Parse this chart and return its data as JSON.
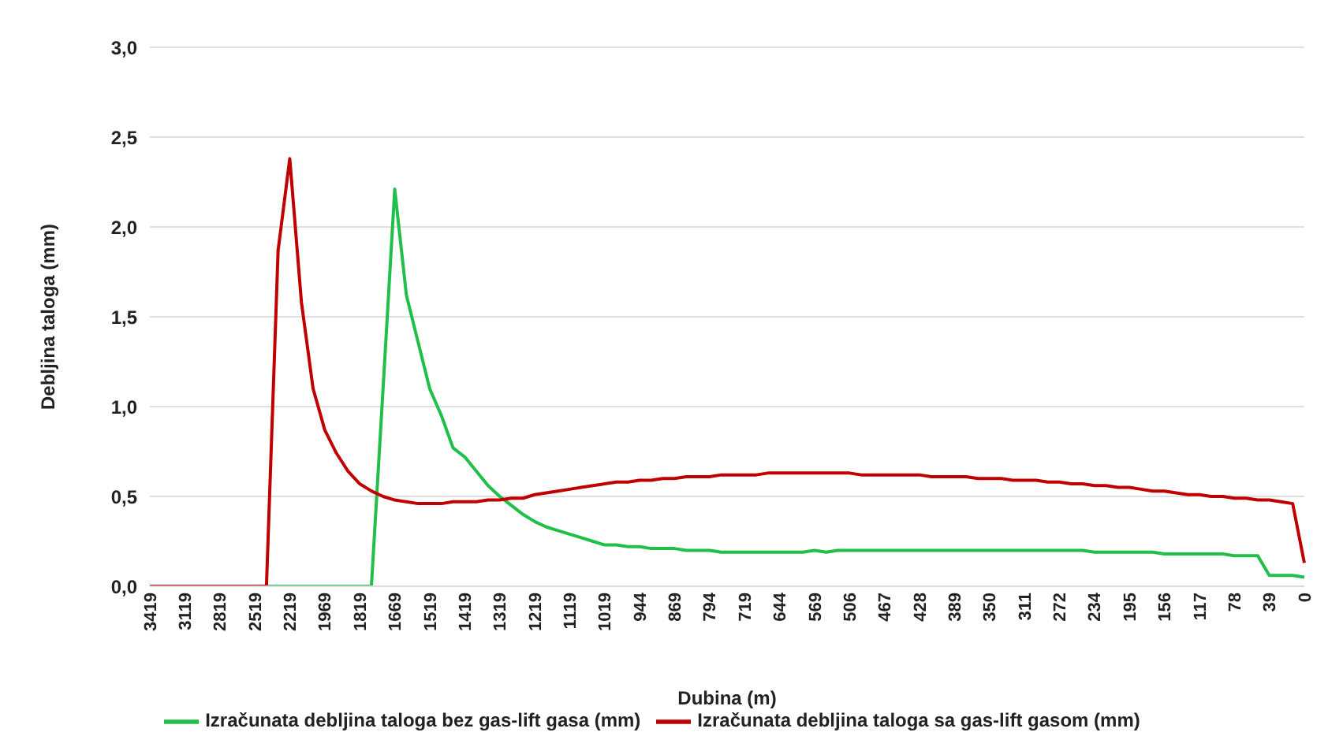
{
  "chart_data": {
    "type": "line",
    "xlabel": "Dubina (m)",
    "ylabel": "Debljina taloga (mm)",
    "categories": [
      "3419",
      null,
      null,
      "3119",
      null,
      null,
      "2819",
      null,
      null,
      "2519",
      null,
      null,
      "2219",
      null,
      null,
      "1969",
      null,
      null,
      "1819",
      null,
      null,
      "1669",
      null,
      null,
      "1519",
      null,
      null,
      "1419",
      null,
      null,
      "1319",
      null,
      null,
      "1219",
      null,
      null,
      "1119",
      null,
      null,
      "1019",
      null,
      null,
      "944",
      null,
      null,
      "869",
      null,
      null,
      "794",
      null,
      null,
      "719",
      null,
      null,
      "644",
      null,
      null,
      "569",
      null,
      null,
      "506",
      null,
      null,
      "467",
      null,
      null,
      "428",
      null,
      null,
      "389",
      null,
      null,
      "350",
      null,
      null,
      "311",
      null,
      null,
      "272",
      null,
      null,
      "234",
      null,
      null,
      "195",
      null,
      null,
      "156",
      null,
      null,
      "117",
      null,
      null,
      "78",
      null,
      null,
      "39",
      null,
      null,
      "0"
    ],
    "series": [
      {
        "name": "Izračunata debljina taloga bez gas-lift gasa (mm)",
        "color": "#1fbf4a",
        "values": [
          null,
          null,
          null,
          null,
          null,
          null,
          null,
          null,
          null,
          0,
          0,
          0,
          0,
          0,
          0,
          0,
          0,
          0,
          0,
          0,
          1.1,
          2.21,
          1.62,
          1.36,
          1.1,
          0.95,
          0.77,
          0.72,
          0.64,
          0.56,
          0.5,
          0.45,
          0.4,
          0.36,
          0.33,
          0.31,
          0.29,
          0.27,
          0.25,
          0.23,
          0.23,
          0.22,
          0.22,
          0.21,
          0.21,
          0.21,
          0.2,
          0.2,
          0.2,
          0.19,
          0.19,
          0.19,
          0.19,
          0.19,
          0.19,
          0.19,
          0.19,
          0.2,
          0.19,
          0.2,
          0.2,
          0.2,
          0.2,
          0.2,
          0.2,
          0.2,
          0.2,
          0.2,
          0.2,
          0.2,
          0.2,
          0.2,
          0.2,
          0.2,
          0.2,
          0.2,
          0.2,
          0.2,
          0.2,
          0.2,
          0.2,
          0.19,
          0.19,
          0.19,
          0.19,
          0.19,
          0.19,
          0.18,
          0.18,
          0.18,
          0.18,
          0.18,
          0.18,
          0.17,
          0.17,
          0.17,
          0.06,
          0.06,
          0.06,
          0.05
        ]
      },
      {
        "name": "Izračunata debljina taloga sa gas-lift gasom (mm)",
        "color": "#c00000",
        "values": [
          0,
          0,
          0,
          0,
          0,
          0,
          0,
          0,
          0,
          0,
          0,
          1.87,
          2.38,
          1.58,
          1.1,
          0.87,
          0.74,
          0.64,
          0.57,
          0.53,
          0.5,
          0.48,
          0.47,
          0.46,
          0.46,
          0.46,
          0.47,
          0.47,
          0.47,
          0.48,
          0.48,
          0.49,
          0.49,
          0.51,
          0.52,
          0.53,
          0.54,
          0.55,
          0.56,
          0.57,
          0.58,
          0.58,
          0.59,
          0.59,
          0.6,
          0.6,
          0.61,
          0.61,
          0.61,
          0.62,
          0.62,
          0.62,
          0.62,
          0.63,
          0.63,
          0.63,
          0.63,
          0.63,
          0.63,
          0.63,
          0.63,
          0.62,
          0.62,
          0.62,
          0.62,
          0.62,
          0.62,
          0.61,
          0.61,
          0.61,
          0.61,
          0.6,
          0.6,
          0.6,
          0.59,
          0.59,
          0.59,
          0.58,
          0.58,
          0.57,
          0.57,
          0.56,
          0.56,
          0.55,
          0.55,
          0.54,
          0.53,
          0.53,
          0.52,
          0.51,
          0.51,
          0.5,
          0.5,
          0.49,
          0.49,
          0.48,
          0.48,
          0.47,
          0.46,
          0.13
        ]
      }
    ],
    "ylim": [
      0,
      3
    ],
    "yticks": [
      {
        "value": 0,
        "label": "0,0"
      },
      {
        "value": 0.5,
        "label": "0,5"
      },
      {
        "value": 1,
        "label": "1,0"
      },
      {
        "value": 1.5,
        "label": "1,5"
      },
      {
        "value": 2,
        "label": "2,0"
      },
      {
        "value": 2.5,
        "label": "2,5"
      },
      {
        "value": 3,
        "label": "3,0"
      }
    ],
    "grid": "y",
    "legend": "bottom",
    "marker": "none",
    "line_style": "solid"
  }
}
